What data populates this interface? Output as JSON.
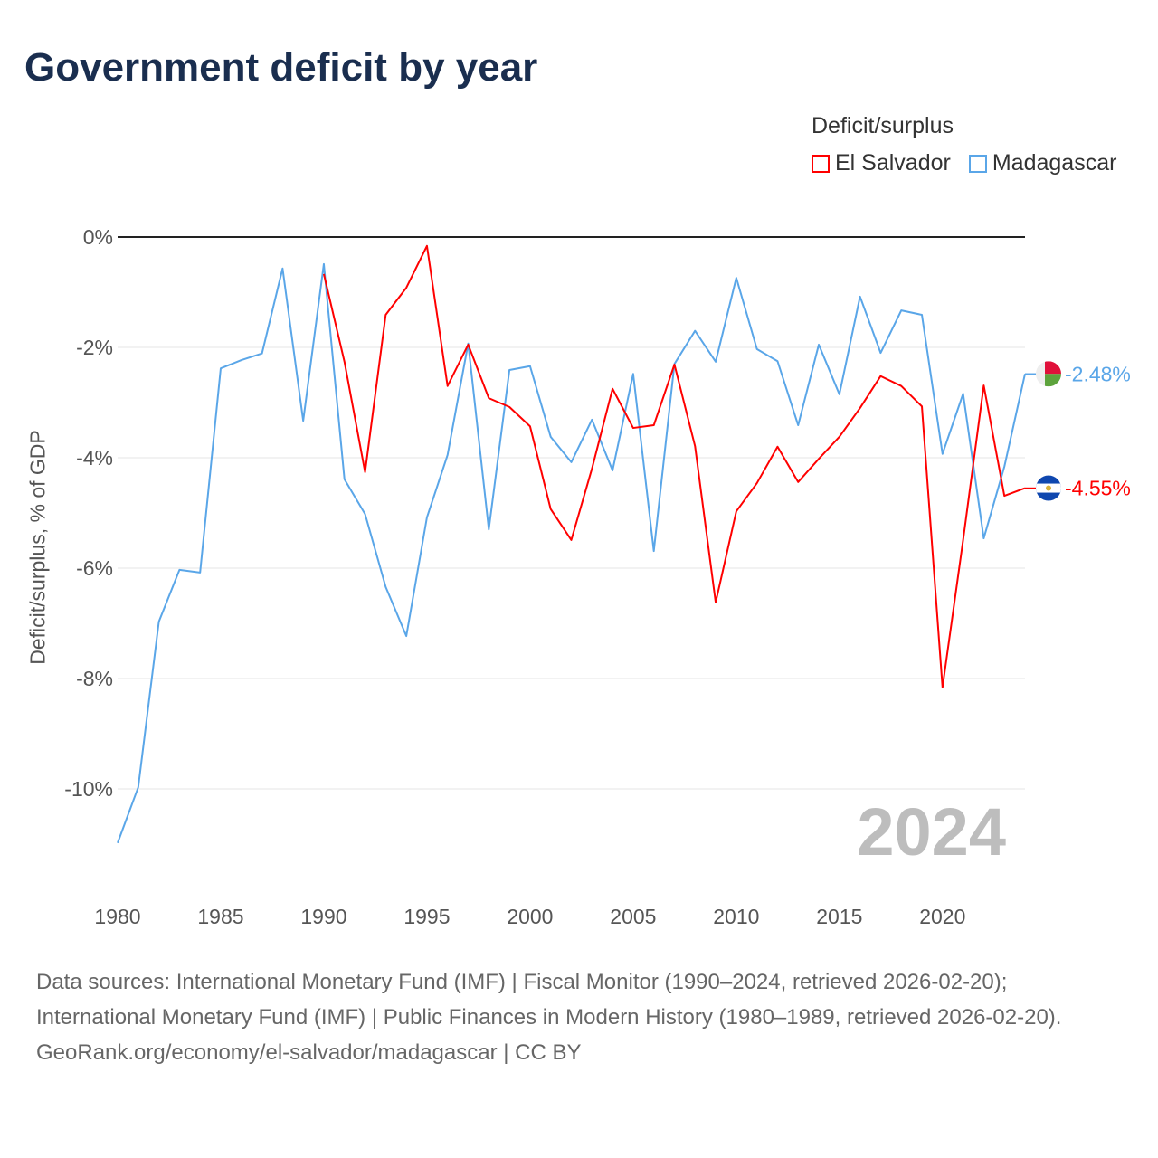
{
  "title": "Government deficit by year",
  "legend": {
    "title": "Deficit/surplus",
    "items": [
      {
        "name": "El Salvador",
        "color": "#ff0000"
      },
      {
        "name": "Madagascar",
        "color": "#5aa6e8"
      }
    ]
  },
  "chart_data": {
    "type": "line",
    "title": "Government deficit by year",
    "xlabel": "",
    "ylabel": "Deficit/surplus, % of GDP",
    "xlim": [
      1980,
      2024
    ],
    "ylim": [
      -11,
      0
    ],
    "x_ticks": [
      1980,
      1985,
      1990,
      1995,
      2000,
      2005,
      2010,
      2015,
      2020
    ],
    "y_ticks": [
      0,
      -2,
      -4,
      -6,
      -8,
      -10
    ],
    "y_tick_labels": [
      "0%",
      "-2%",
      "-4%",
      "-6%",
      "-8%",
      "-10%"
    ],
    "grid": true,
    "year_annotation": "2024",
    "series": [
      {
        "name": "El Salvador",
        "color": "#ff0000",
        "end_label": "-4.55%",
        "start_year": 1990,
        "values": [
          -0.67,
          -2.26,
          -4.26,
          -1.41,
          -0.92,
          -0.16,
          -2.7,
          -1.95,
          -2.92,
          -3.08,
          -3.43,
          -4.93,
          -5.49,
          -4.2,
          -2.75,
          -3.46,
          -3.41,
          -2.31,
          -3.79,
          -6.62,
          -4.97,
          -4.46,
          -3.8,
          -4.44,
          -4.02,
          -3.62,
          -3.1,
          -2.52,
          -2.7,
          -3.07,
          -8.16,
          -5.49,
          -2.69,
          -4.69,
          -4.55
        ]
      },
      {
        "name": "Madagascar",
        "color": "#5aa6e8",
        "end_label": "-2.48%",
        "start_year": 1980,
        "values": [
          -10.98,
          -9.97,
          -6.97,
          -6.03,
          -6.08,
          -2.38,
          -2.23,
          -2.11,
          -0.57,
          -3.33,
          -0.49,
          -4.39,
          -5.02,
          -6.34,
          -7.23,
          -5.08,
          -3.95,
          -1.93,
          -5.3,
          -2.41,
          -2.34,
          -3.62,
          -4.08,
          -3.31,
          -4.23,
          -2.48,
          -5.69,
          -2.3,
          -1.7,
          -2.26,
          -0.74,
          -2.03,
          -2.25,
          -3.41,
          -1.95,
          -2.85,
          -1.08,
          -2.1,
          -1.33,
          -1.41,
          -3.93,
          -2.84,
          -5.46,
          -4.16,
          -2.48
        ]
      }
    ]
  },
  "source": {
    "line1": "Data sources: International Monetary Fund (IMF) | Fiscal Monitor (1990–2024, retrieved 2026-02-20); International Monetary Fund (IMF) | Public Finances in Modern History (1980–1989, retrieved 2026-02-20).",
    "line2": "GeoRank.org/economy/el-salvador/madagascar | CC BY"
  }
}
